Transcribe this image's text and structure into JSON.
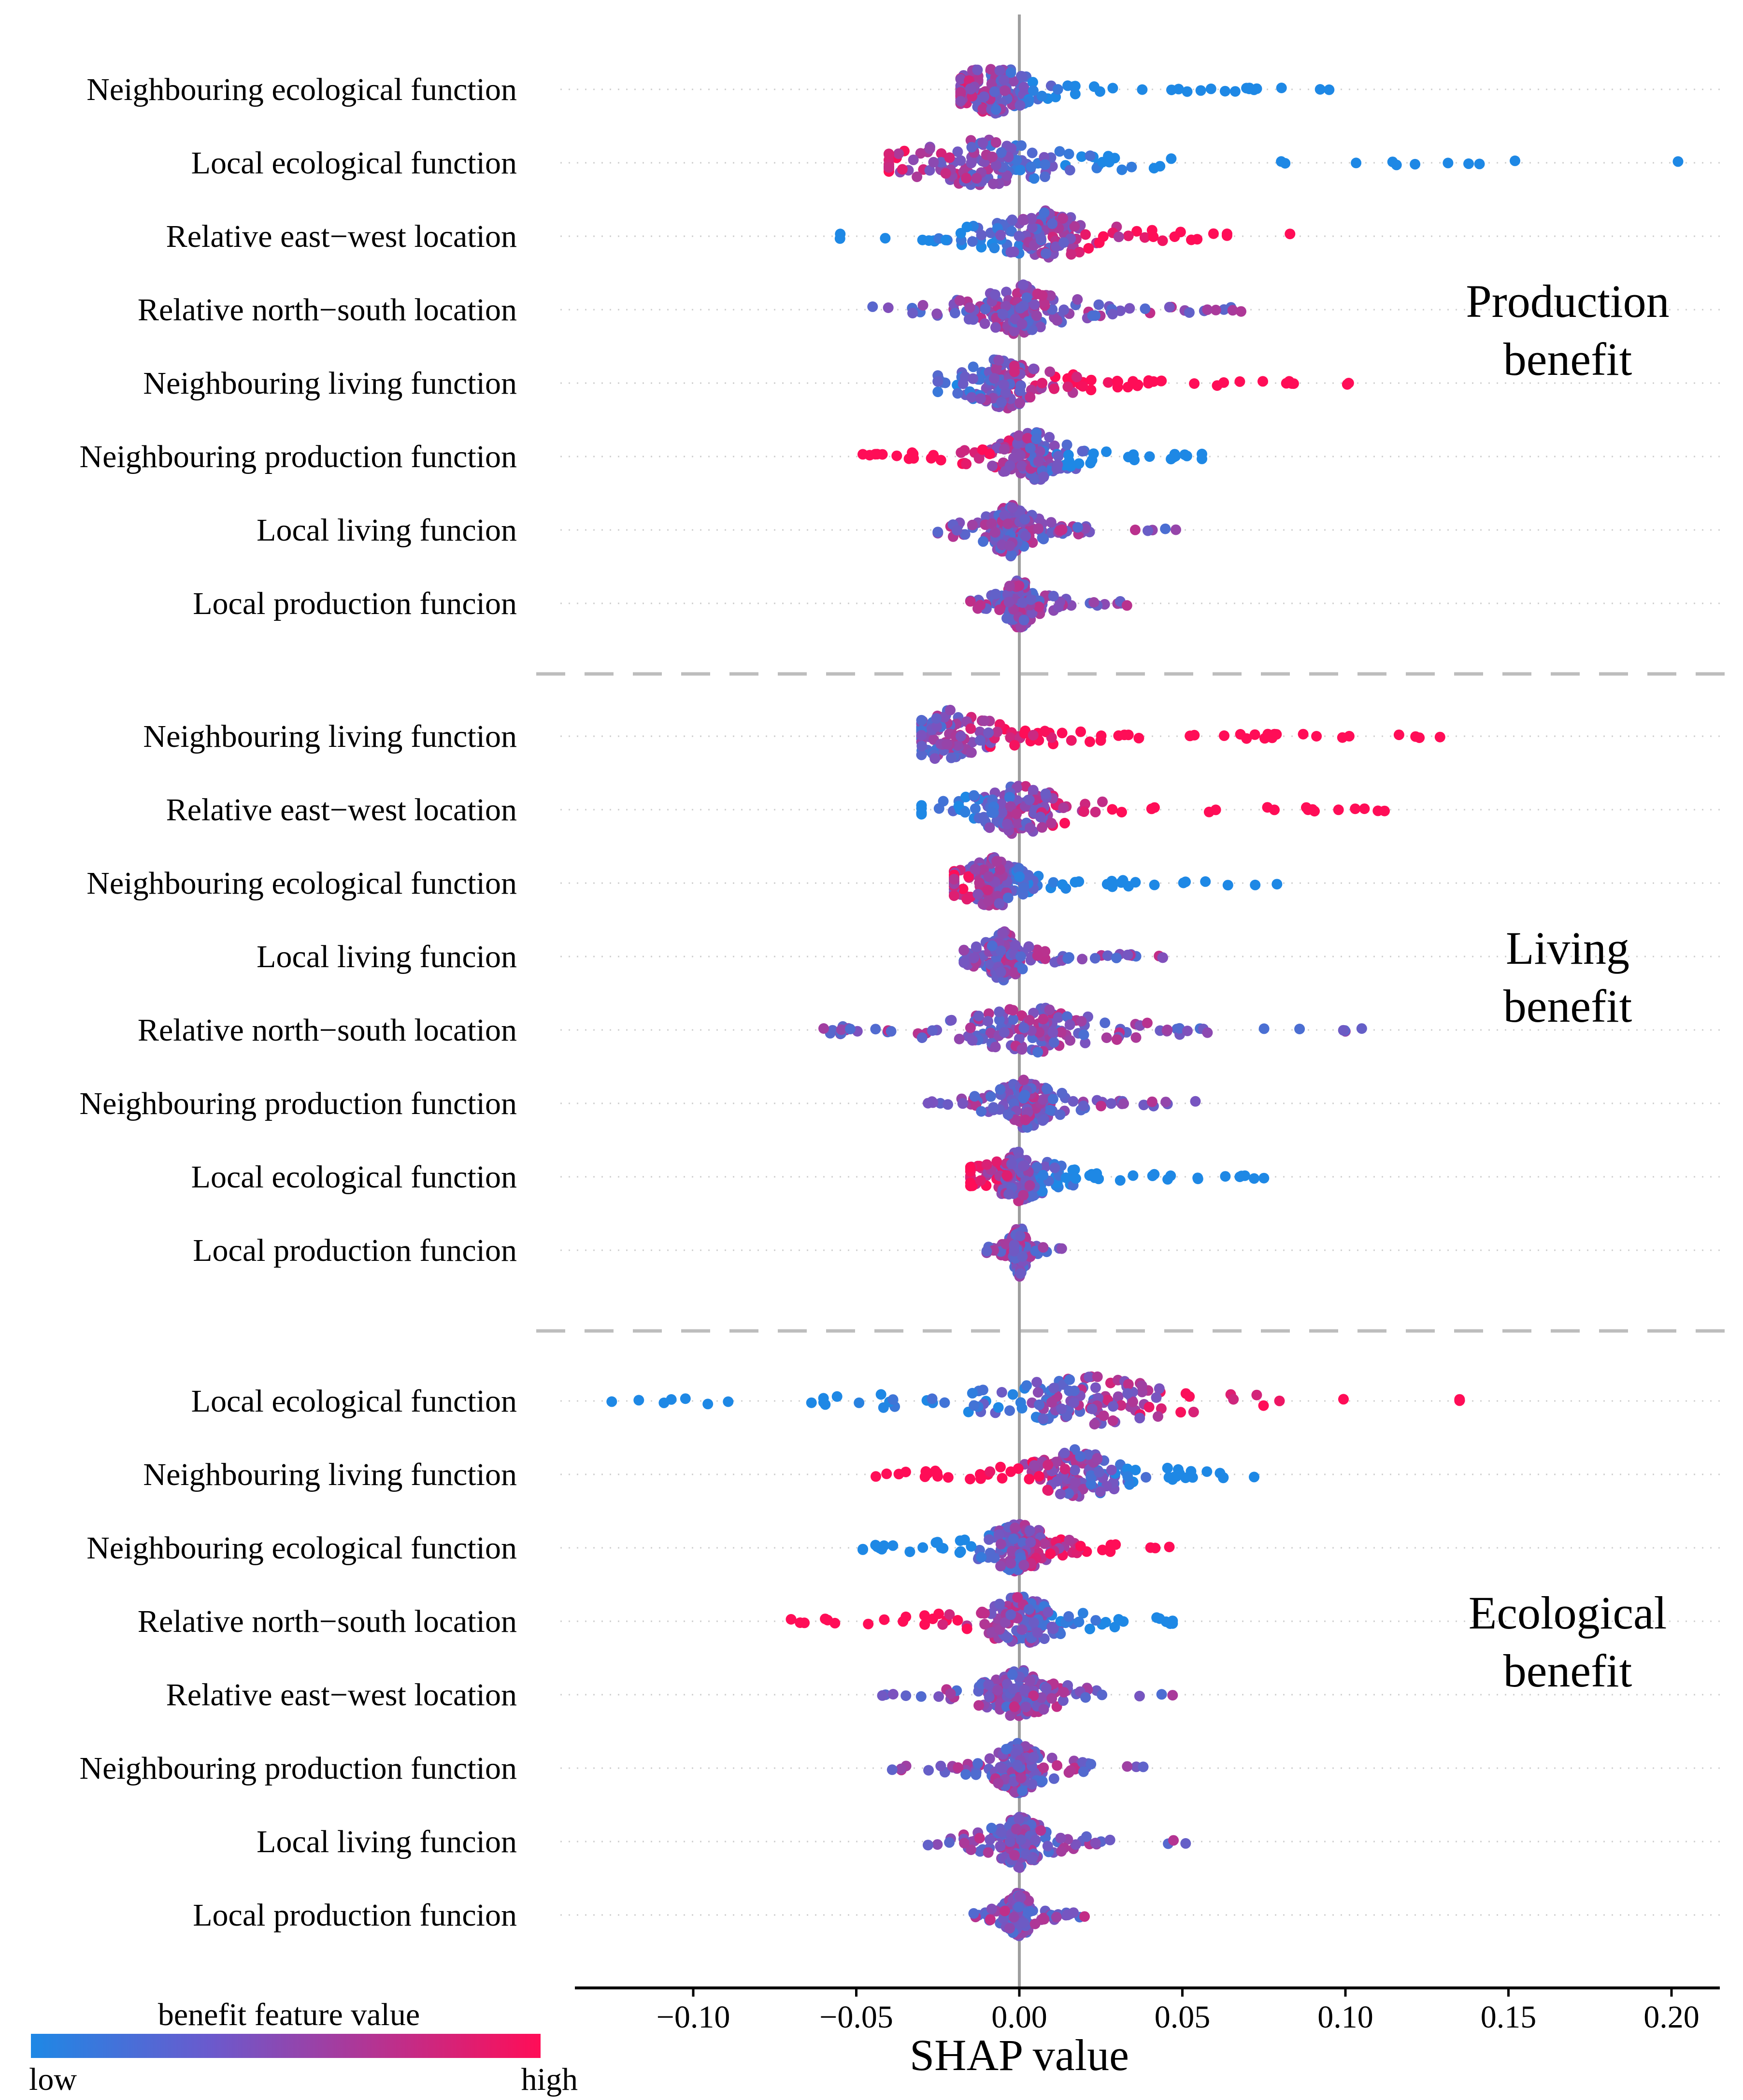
{
  "chart_data": {
    "type": "scatter",
    "subtype": "shap_beeswarm",
    "xlabel": "SHAP value",
    "xlim": [
      -0.135,
      0.215
    ],
    "x_ticks": [
      -0.1,
      -0.05,
      0.0,
      0.05,
      0.1,
      0.15,
      0.2
    ],
    "x_tick_labels": [
      "−0.10",
      "−0.05",
      "0.00",
      "0.05",
      "0.10",
      "0.15",
      "0.20"
    ],
    "colorbar": {
      "title": "benefit feature value",
      "low_label": "low",
      "high_label": "high",
      "low_color": "#1e88e5",
      "high_color": "#ff0d57"
    },
    "panels": [
      {
        "title_lines": [
          "Production",
          "benefit"
        ],
        "features": [
          {
            "name": "Neighbouring ecological function",
            "min": -0.018,
            "max": 0.095,
            "peak": -0.008,
            "pattern": "high_neg"
          },
          {
            "name": "Local ecological function",
            "min": -0.04,
            "max": 0.152,
            "outliers": [
              0.202
            ],
            "peak": -0.012,
            "pattern": "high_neg"
          },
          {
            "name": "Relative east−west location",
            "min": -0.055,
            "max": 0.083,
            "peak": 0.008,
            "pattern": "low_neg_high_pos"
          },
          {
            "name": "Relative north−south location",
            "min": -0.045,
            "max": 0.068,
            "peak": 0.0,
            "pattern": "mixed"
          },
          {
            "name": "Neighbouring living function",
            "min": -0.025,
            "max": 0.101,
            "peak": -0.005,
            "pattern": "low_neg_high_pos"
          },
          {
            "name": "Neighbouring production function",
            "min": -0.048,
            "max": 0.056,
            "peak": 0.004,
            "pattern": "high_neg"
          },
          {
            "name": "Local living funcion",
            "min": -0.025,
            "max": 0.048,
            "peak": -0.003,
            "pattern": "mixed"
          },
          {
            "name": "Local production funcion",
            "min": -0.015,
            "max": 0.033,
            "peak": 0.0,
            "pattern": "mixed"
          }
        ]
      },
      {
        "title_lines": [
          "Living",
          "benefit"
        ],
        "features": [
          {
            "name": "Neighbouring living function",
            "min": -0.03,
            "max": 0.129,
            "peak": -0.022,
            "pattern": "low_neg_high_pos"
          },
          {
            "name": "Relative east−west location",
            "min": -0.03,
            "max": 0.112,
            "peak": 0.0,
            "pattern": "low_neg_high_pos"
          },
          {
            "name": "Neighbouring ecological function",
            "min": -0.02,
            "max": 0.079,
            "peak": -0.008,
            "pattern": "high_neg"
          },
          {
            "name": "Local living funcion",
            "min": -0.017,
            "max": 0.044,
            "peak": -0.005,
            "pattern": "mixed"
          },
          {
            "name": "Relative north−south location",
            "min": -0.06,
            "max": 0.105,
            "peak": 0.003,
            "pattern": "mixed"
          },
          {
            "name": "Neighbouring production function",
            "min": -0.028,
            "max": 0.054,
            "peak": 0.002,
            "pattern": "mixed"
          },
          {
            "name": "Local ecological function",
            "min": -0.015,
            "max": 0.075,
            "peak": 0.0,
            "pattern": "high_neg"
          },
          {
            "name": "Local production funcion",
            "min": -0.01,
            "max": 0.013,
            "peak": 0.0,
            "pattern": "mixed"
          }
        ]
      },
      {
        "title_lines": [
          "Ecological",
          "benefit"
        ],
        "features": [
          {
            "name": "Local ecological function",
            "min": -0.125,
            "max": 0.135,
            "peak": 0.02,
            "pattern": "low_neg_high_pos"
          },
          {
            "name": "Neighbouring living function",
            "min": -0.044,
            "max": 0.072,
            "peak": 0.018,
            "pattern": "high_neg"
          },
          {
            "name": "Neighbouring ecological function",
            "min": -0.048,
            "max": 0.046,
            "peak": 0.0,
            "pattern": "low_neg_high_pos"
          },
          {
            "name": "Relative north−south location",
            "min": -0.07,
            "max": 0.047,
            "peak": 0.0,
            "pattern": "high_neg"
          },
          {
            "name": "Relative east−west location",
            "min": -0.042,
            "max": 0.047,
            "peak": 0.0,
            "pattern": "mixed"
          },
          {
            "name": "Neighbouring production function",
            "min": -0.039,
            "max": 0.038,
            "peak": 0.0,
            "pattern": "mixed"
          },
          {
            "name": "Local living funcion",
            "min": -0.028,
            "max": 0.051,
            "peak": 0.0,
            "pattern": "mixed"
          },
          {
            "name": "Local production funcion",
            "min": -0.014,
            "max": 0.02,
            "peak": 0.0,
            "pattern": "mixed"
          }
        ]
      }
    ]
  }
}
